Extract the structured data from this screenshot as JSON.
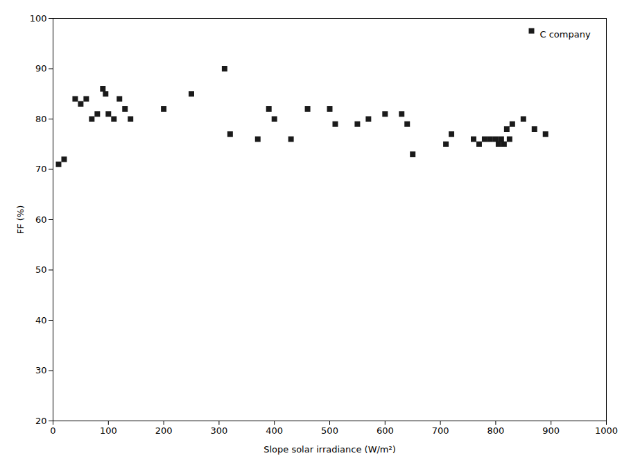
{
  "chart_data": {
    "type": "scatter",
    "xlabel": "Slope solar irradiance (W/m²)",
    "ylabel": "FF (%)",
    "x": [
      10,
      20,
      40,
      50,
      60,
      70,
      80,
      90,
      95,
      100,
      110,
      120,
      130,
      140,
      200,
      250,
      310,
      320,
      370,
      390,
      400,
      430,
      460,
      500,
      510,
      550,
      570,
      600,
      630,
      640,
      650,
      710,
      720,
      760,
      770,
      780,
      790,
      800,
      805,
      810,
      815,
      820,
      825,
      830,
      850,
      870,
      890
    ],
    "series": [
      {
        "name": "C company",
        "color": "#1a1a1a",
        "marker": "square",
        "values": [
          71,
          72,
          84,
          83,
          84,
          80,
          81,
          86,
          85,
          81,
          80,
          84,
          82,
          80,
          82,
          85,
          90,
          77,
          76,
          82,
          80,
          76,
          82,
          82,
          79,
          79,
          80,
          81,
          81,
          79,
          73,
          75,
          77,
          76,
          75,
          76,
          76,
          76,
          75,
          76,
          75,
          78,
          76,
          79,
          80,
          78,
          77
        ]
      }
    ],
    "xlim": [
      0,
      1000
    ],
    "ylim": [
      20,
      100
    ],
    "xticks": [
      0,
      100,
      200,
      300,
      400,
      500,
      600,
      700,
      800,
      900,
      1000
    ],
    "yticks": [
      20,
      30,
      40,
      50,
      60,
      70,
      80,
      90,
      100
    ],
    "grid": false,
    "legend": "upper right"
  }
}
